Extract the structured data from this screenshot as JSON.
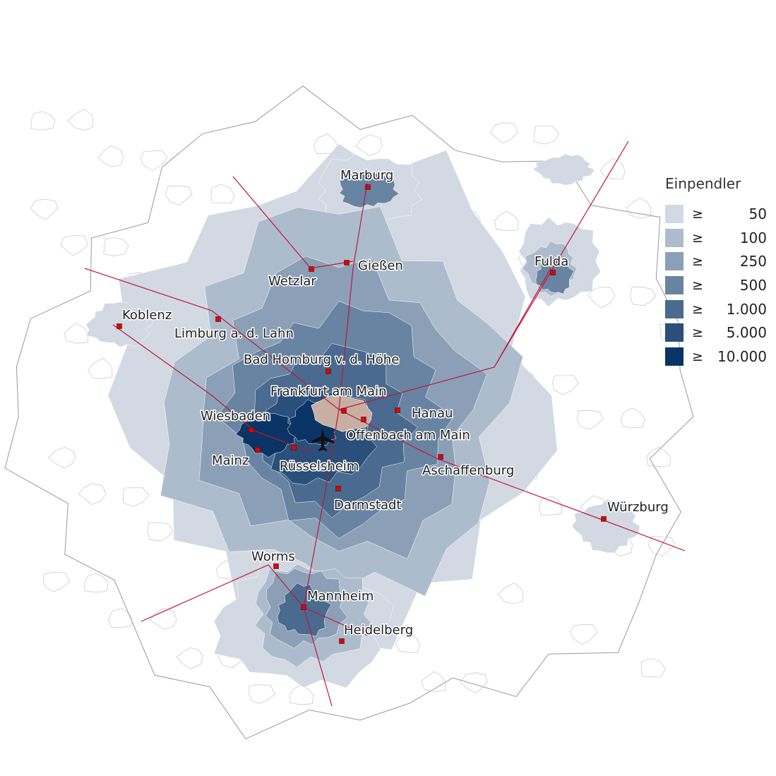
{
  "legend": {
    "title": "Einpendler",
    "symbol": "≥",
    "classes": [
      {
        "label": "50",
        "color": "#d3d9e2"
      },
      {
        "label": "100",
        "color": "#adbccd"
      },
      {
        "label": "250",
        "color": "#8ba0b7"
      },
      {
        "label": "500",
        "color": "#6884a2"
      },
      {
        "label": "1.000",
        "color": "#4a6a8f"
      },
      {
        "label": "5.000",
        "color": "#294f7a"
      },
      {
        "label": "10.000",
        "color": "#0a3465"
      }
    ]
  },
  "destination_color": "#c9aea3",
  "city_marker_color": "#e00000",
  "rail_color": "#c0163a",
  "airport_icon": "airplane-icon",
  "cities": [
    {
      "name": "Marburg"
    },
    {
      "name": "Gießen"
    },
    {
      "name": "Wetzlar"
    },
    {
      "name": "Fulda"
    },
    {
      "name": "Koblenz"
    },
    {
      "name": "Limburg a. d. Lahn"
    },
    {
      "name": "Bad Homburg v. d. Höhe"
    },
    {
      "name": "Frankfurt am Main"
    },
    {
      "name": "Hanau"
    },
    {
      "name": "Offenbach am Main"
    },
    {
      "name": "Wiesbaden"
    },
    {
      "name": "Mainz"
    },
    {
      "name": "Rüsselsheim"
    },
    {
      "name": "Aschaffenburg"
    },
    {
      "name": "Darmstadt"
    },
    {
      "name": "Würzburg"
    },
    {
      "name": "Worms"
    },
    {
      "name": "Mannheim"
    },
    {
      "name": "Heidelberg"
    }
  ]
}
